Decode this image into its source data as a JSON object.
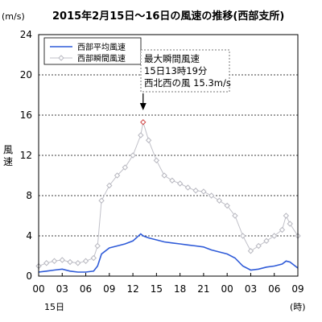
{
  "chart_data": {
    "type": "line",
    "title": "2015年2月15日～16日の風速の推移(西部支所)",
    "unit_label": "(m/s)",
    "ylabel": "風速",
    "xlabel_unit": "(時)",
    "date_label": "15日",
    "ylim": [
      0,
      24
    ],
    "y_ticks": [
      "0",
      "4",
      "8",
      "12",
      "16",
      "20",
      "24"
    ],
    "xlim_hours": [
      0,
      33
    ],
    "x_ticks": [
      {
        "hour": 0,
        "label": "00"
      },
      {
        "hour": 3,
        "label": "03"
      },
      {
        "hour": 6,
        "label": "06"
      },
      {
        "hour": 9,
        "label": "09"
      },
      {
        "hour": 12,
        "label": "12"
      },
      {
        "hour": 15,
        "label": "15"
      },
      {
        "hour": 18,
        "label": "18"
      },
      {
        "hour": 21,
        "label": "21"
      },
      {
        "hour": 24,
        "label": "00"
      },
      {
        "hour": 27,
        "label": "03"
      },
      {
        "hour": 30,
        "label": "06"
      },
      {
        "hour": 33,
        "label": "09"
      }
    ],
    "grid": "horizontal dashed",
    "legend_position": "top-left",
    "colors": {
      "avg": "#2f5bd8",
      "gust_line": "#c0c0c8",
      "gust_marker": "#b8b8c0",
      "max_marker": "#d04848"
    },
    "series": [
      {
        "name": "西部平均風速",
        "style": "line",
        "x": [
          0,
          1,
          2,
          3,
          4,
          5,
          6,
          7,
          7.5,
          8,
          9,
          10,
          11,
          12,
          13,
          13.3,
          14,
          15,
          16,
          17,
          18,
          19,
          20,
          21,
          22,
          23,
          24,
          25,
          26,
          27,
          28,
          29,
          30,
          31,
          31.5,
          32,
          33
        ],
        "y": [
          0.4,
          0.5,
          0.6,
          0.7,
          0.5,
          0.4,
          0.4,
          0.5,
          1.0,
          2.2,
          2.8,
          3.0,
          3.2,
          3.5,
          4.2,
          4.0,
          3.8,
          3.6,
          3.4,
          3.3,
          3.2,
          3.1,
          3.0,
          2.9,
          2.6,
          2.4,
          2.2,
          1.8,
          1.0,
          0.6,
          0.7,
          0.9,
          1.0,
          1.2,
          1.5,
          1.4,
          0.8
        ]
      },
      {
        "name": "西部瞬間風速",
        "style": "line-marker",
        "x": [
          0,
          1,
          2,
          3,
          4,
          5,
          6,
          7,
          7.5,
          8,
          9,
          10,
          11,
          12,
          13,
          13.3,
          14,
          15,
          16,
          17,
          18,
          19,
          20,
          21,
          22,
          23,
          24,
          25,
          26,
          27,
          28,
          29,
          30,
          31,
          31.5,
          32,
          33
        ],
        "y": [
          1.0,
          1.3,
          1.5,
          1.6,
          1.4,
          1.3,
          1.5,
          1.8,
          3.0,
          7.5,
          9.0,
          10.0,
          10.8,
          12.0,
          14.0,
          15.3,
          13.5,
          11.5,
          10.0,
          9.5,
          9.2,
          8.8,
          8.5,
          8.4,
          8.0,
          7.5,
          7.0,
          6.0,
          4.0,
          2.5,
          3.0,
          3.5,
          4.0,
          4.6,
          6.0,
          5.2,
          4.0
        ]
      }
    ],
    "annotation": {
      "lines": [
        "最大瞬間風速",
        "15日13時19分",
        "西北西の風 15.3m/s"
      ],
      "hour": 13.3,
      "value": 15.3
    }
  }
}
